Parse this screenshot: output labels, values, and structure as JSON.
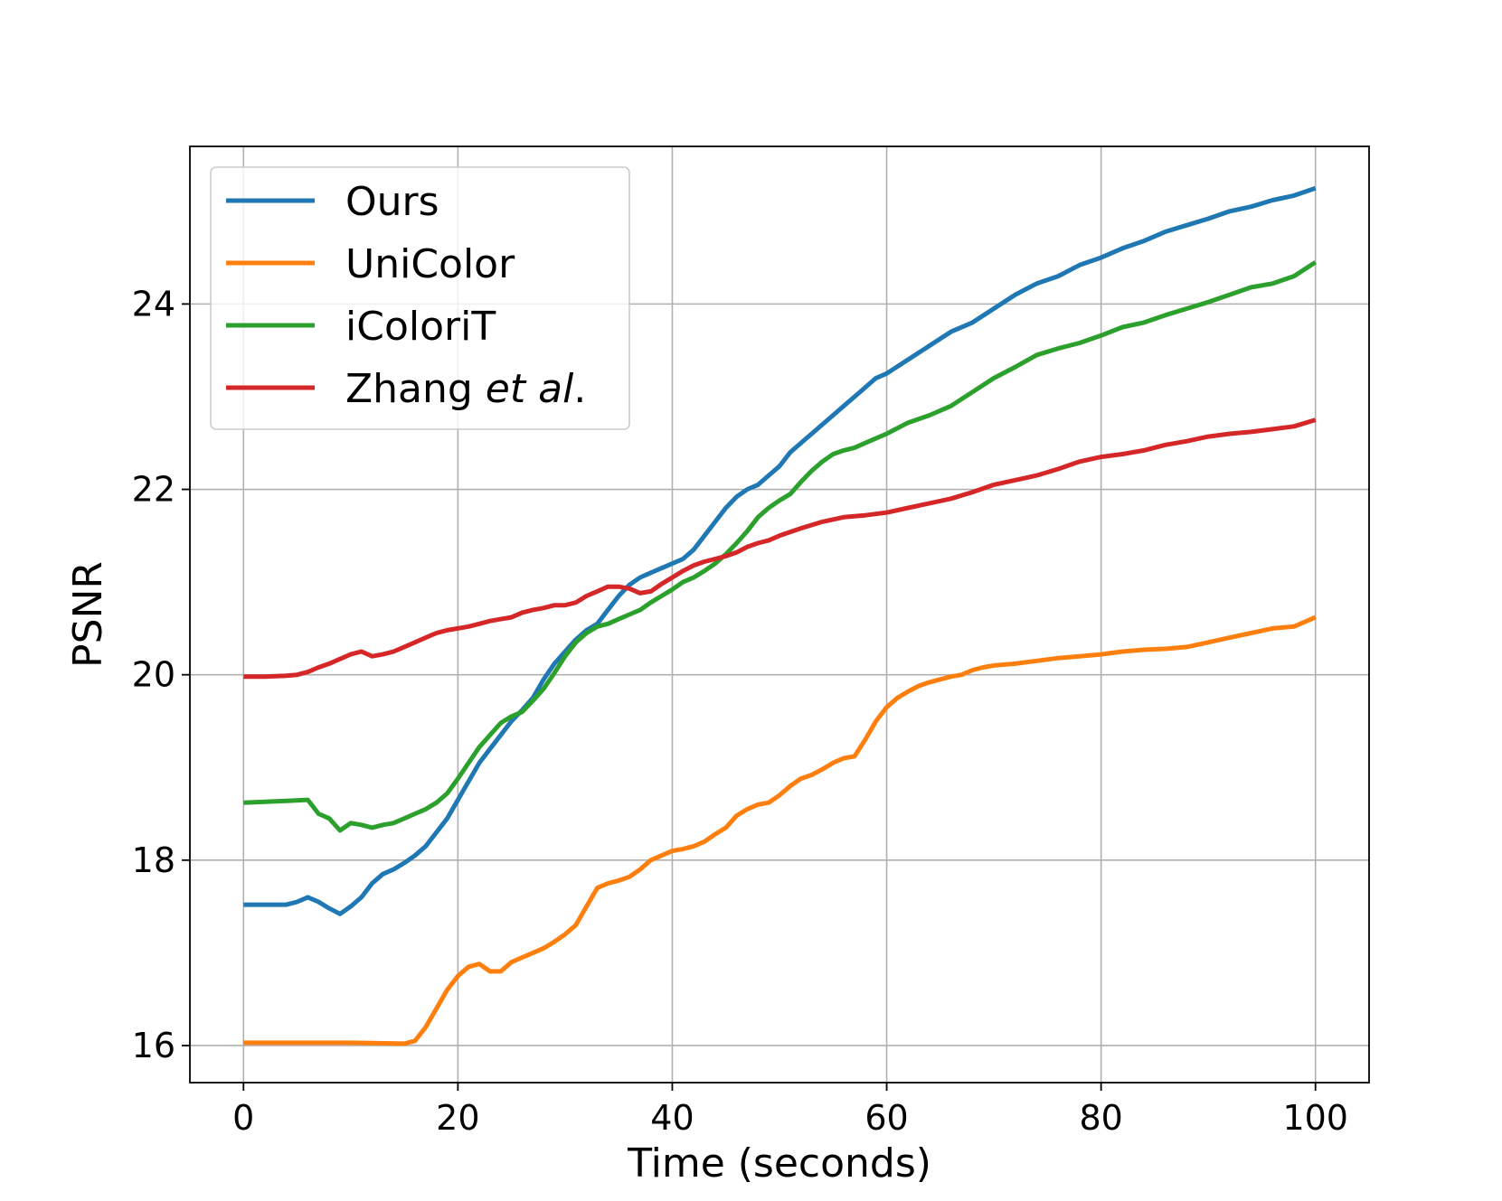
{
  "chart_data": {
    "type": "line",
    "xlabel": "Time (seconds)",
    "ylabel": "PSNR",
    "xlim": [
      -5,
      105
    ],
    "ylim": [
      15.6,
      25.7
    ],
    "xticks": [
      0,
      20,
      40,
      60,
      80,
      100
    ],
    "yticks": [
      16,
      18,
      20,
      22,
      24
    ],
    "grid": true,
    "legend_position": "top-left",
    "series": [
      {
        "name": "Ours",
        "name_parts": [
          {
            "text": "Ours",
            "italic": false
          }
        ],
        "color": "#1f77b4",
        "x": [
          0,
          2,
          4,
          5,
          6,
          7,
          8,
          9,
          10,
          11,
          12,
          13,
          14,
          15,
          16,
          17,
          18,
          19,
          20,
          21,
          22,
          23,
          24,
          25,
          26,
          27,
          28,
          29,
          30,
          31,
          32,
          33,
          34,
          35,
          36,
          37,
          38,
          39,
          40,
          41,
          42,
          43,
          44,
          45,
          46,
          47,
          48,
          49,
          50,
          51,
          52,
          53,
          54,
          55,
          56,
          57,
          58,
          59,
          60,
          62,
          64,
          66,
          68,
          70,
          72,
          74,
          76,
          78,
          80,
          82,
          84,
          86,
          88,
          90,
          92,
          94,
          96,
          98,
          100
        ],
        "y": [
          17.52,
          17.52,
          17.52,
          17.55,
          17.6,
          17.55,
          17.48,
          17.42,
          17.5,
          17.6,
          17.75,
          17.85,
          17.9,
          17.97,
          18.05,
          18.15,
          18.3,
          18.45,
          18.65,
          18.85,
          19.05,
          19.2,
          19.35,
          19.5,
          19.62,
          19.75,
          19.95,
          20.12,
          20.25,
          20.38,
          20.48,
          20.55,
          20.7,
          20.85,
          20.97,
          21.05,
          21.1,
          21.15,
          21.2,
          21.25,
          21.35,
          21.5,
          21.65,
          21.8,
          21.92,
          22.0,
          22.05,
          22.15,
          22.25,
          22.4,
          22.5,
          22.6,
          22.7,
          22.8,
          22.9,
          23.0,
          23.1,
          23.2,
          23.25,
          23.4,
          23.55,
          23.7,
          23.8,
          23.95,
          24.1,
          24.22,
          24.3,
          24.42,
          24.5,
          24.6,
          24.68,
          24.78,
          24.85,
          24.92,
          25.0,
          25.05,
          25.12,
          25.17,
          25.25
        ]
      },
      {
        "name": "UniColor",
        "name_parts": [
          {
            "text": "UniColor",
            "italic": false
          }
        ],
        "color": "#ff7f0e",
        "x": [
          0,
          5,
          10,
          15,
          16,
          17,
          18,
          19,
          20,
          21,
          22,
          23,
          24,
          25,
          26,
          27,
          28,
          29,
          30,
          31,
          32,
          33,
          34,
          35,
          36,
          37,
          38,
          39,
          40,
          41,
          42,
          43,
          44,
          45,
          46,
          47,
          48,
          49,
          50,
          51,
          52,
          53,
          54,
          55,
          56,
          57,
          58,
          59,
          60,
          61,
          62,
          63,
          64,
          65,
          66,
          67,
          68,
          69,
          70,
          72,
          74,
          76,
          78,
          80,
          82,
          84,
          86,
          88,
          90,
          92,
          94,
          96,
          98,
          100
        ],
        "y": [
          16.03,
          16.03,
          16.03,
          16.02,
          16.05,
          16.2,
          16.4,
          16.6,
          16.75,
          16.85,
          16.88,
          16.8,
          16.8,
          16.9,
          16.95,
          17.0,
          17.05,
          17.12,
          17.2,
          17.3,
          17.5,
          17.7,
          17.75,
          17.78,
          17.82,
          17.9,
          18.0,
          18.05,
          18.1,
          18.12,
          18.15,
          18.2,
          18.28,
          18.35,
          18.48,
          18.55,
          18.6,
          18.62,
          18.7,
          18.8,
          18.88,
          18.92,
          18.98,
          19.05,
          19.1,
          19.12,
          19.3,
          19.5,
          19.65,
          19.75,
          19.82,
          19.88,
          19.92,
          19.95,
          19.98,
          20.0,
          20.05,
          20.08,
          20.1,
          20.12,
          20.15,
          20.18,
          20.2,
          20.22,
          20.25,
          20.27,
          20.28,
          20.3,
          20.35,
          20.4,
          20.45,
          20.5,
          20.52,
          20.62
        ]
      },
      {
        "name": "iColoriT",
        "name_parts": [
          {
            "text": "iColoriT",
            "italic": false
          }
        ],
        "color": "#2ca02c",
        "x": [
          0,
          2,
          4,
          6,
          7,
          8,
          9,
          10,
          11,
          12,
          13,
          14,
          15,
          16,
          17,
          18,
          19,
          20,
          21,
          22,
          23,
          24,
          25,
          26,
          27,
          28,
          29,
          30,
          31,
          32,
          33,
          34,
          35,
          36,
          37,
          38,
          39,
          40,
          41,
          42,
          43,
          44,
          45,
          46,
          47,
          48,
          49,
          50,
          51,
          52,
          53,
          54,
          55,
          56,
          57,
          58,
          59,
          60,
          62,
          64,
          66,
          68,
          70,
          72,
          74,
          76,
          78,
          80,
          82,
          84,
          86,
          88,
          90,
          92,
          94,
          96,
          98,
          100
        ],
        "y": [
          18.62,
          18.63,
          18.64,
          18.65,
          18.5,
          18.45,
          18.32,
          18.4,
          18.38,
          18.35,
          18.38,
          18.4,
          18.45,
          18.5,
          18.55,
          18.62,
          18.72,
          18.88,
          19.05,
          19.22,
          19.35,
          19.48,
          19.55,
          19.6,
          19.72,
          19.85,
          20.02,
          20.2,
          20.35,
          20.45,
          20.52,
          20.55,
          20.6,
          20.65,
          20.7,
          20.78,
          20.85,
          20.92,
          21.0,
          21.05,
          21.12,
          21.2,
          21.3,
          21.42,
          21.55,
          21.7,
          21.8,
          21.88,
          21.95,
          22.08,
          22.2,
          22.3,
          22.38,
          22.42,
          22.45,
          22.5,
          22.55,
          22.6,
          22.72,
          22.8,
          22.9,
          23.05,
          23.2,
          23.32,
          23.45,
          23.52,
          23.58,
          23.66,
          23.75,
          23.8,
          23.88,
          23.95,
          24.02,
          24.1,
          24.18,
          24.22,
          24.3,
          24.45
        ]
      },
      {
        "name": "Zhang et al.",
        "name_parts": [
          {
            "text": "Zhang ",
            "italic": false
          },
          {
            "text": "et al",
            "italic": true
          },
          {
            "text": ".",
            "italic": false
          }
        ],
        "color": "#d62728",
        "x": [
          0,
          2,
          4,
          5,
          6,
          7,
          8,
          9,
          10,
          11,
          12,
          13,
          14,
          15,
          16,
          17,
          18,
          19,
          20,
          21,
          22,
          23,
          24,
          25,
          26,
          27,
          28,
          29,
          30,
          31,
          32,
          33,
          34,
          35,
          36,
          37,
          38,
          39,
          40,
          41,
          42,
          43,
          44,
          45,
          46,
          47,
          48,
          49,
          50,
          52,
          54,
          56,
          58,
          60,
          62,
          64,
          66,
          68,
          70,
          72,
          74,
          76,
          78,
          80,
          82,
          84,
          86,
          88,
          90,
          92,
          94,
          96,
          98,
          100
        ],
        "y": [
          19.98,
          19.98,
          19.99,
          20.0,
          20.03,
          20.08,
          20.12,
          20.17,
          20.22,
          20.25,
          20.2,
          20.22,
          20.25,
          20.3,
          20.35,
          20.4,
          20.45,
          20.48,
          20.5,
          20.52,
          20.55,
          20.58,
          20.6,
          20.62,
          20.67,
          20.7,
          20.72,
          20.75,
          20.75,
          20.78,
          20.85,
          20.9,
          20.95,
          20.95,
          20.93,
          20.88,
          20.9,
          20.98,
          21.05,
          21.12,
          21.18,
          21.22,
          21.25,
          21.28,
          21.32,
          21.38,
          21.42,
          21.45,
          21.5,
          21.58,
          21.65,
          21.7,
          21.72,
          21.75,
          21.8,
          21.85,
          21.9,
          21.97,
          22.05,
          22.1,
          22.15,
          22.22,
          22.3,
          22.35,
          22.38,
          22.42,
          22.48,
          22.52,
          22.57,
          22.6,
          22.62,
          22.65,
          22.68,
          22.75
        ]
      }
    ]
  }
}
